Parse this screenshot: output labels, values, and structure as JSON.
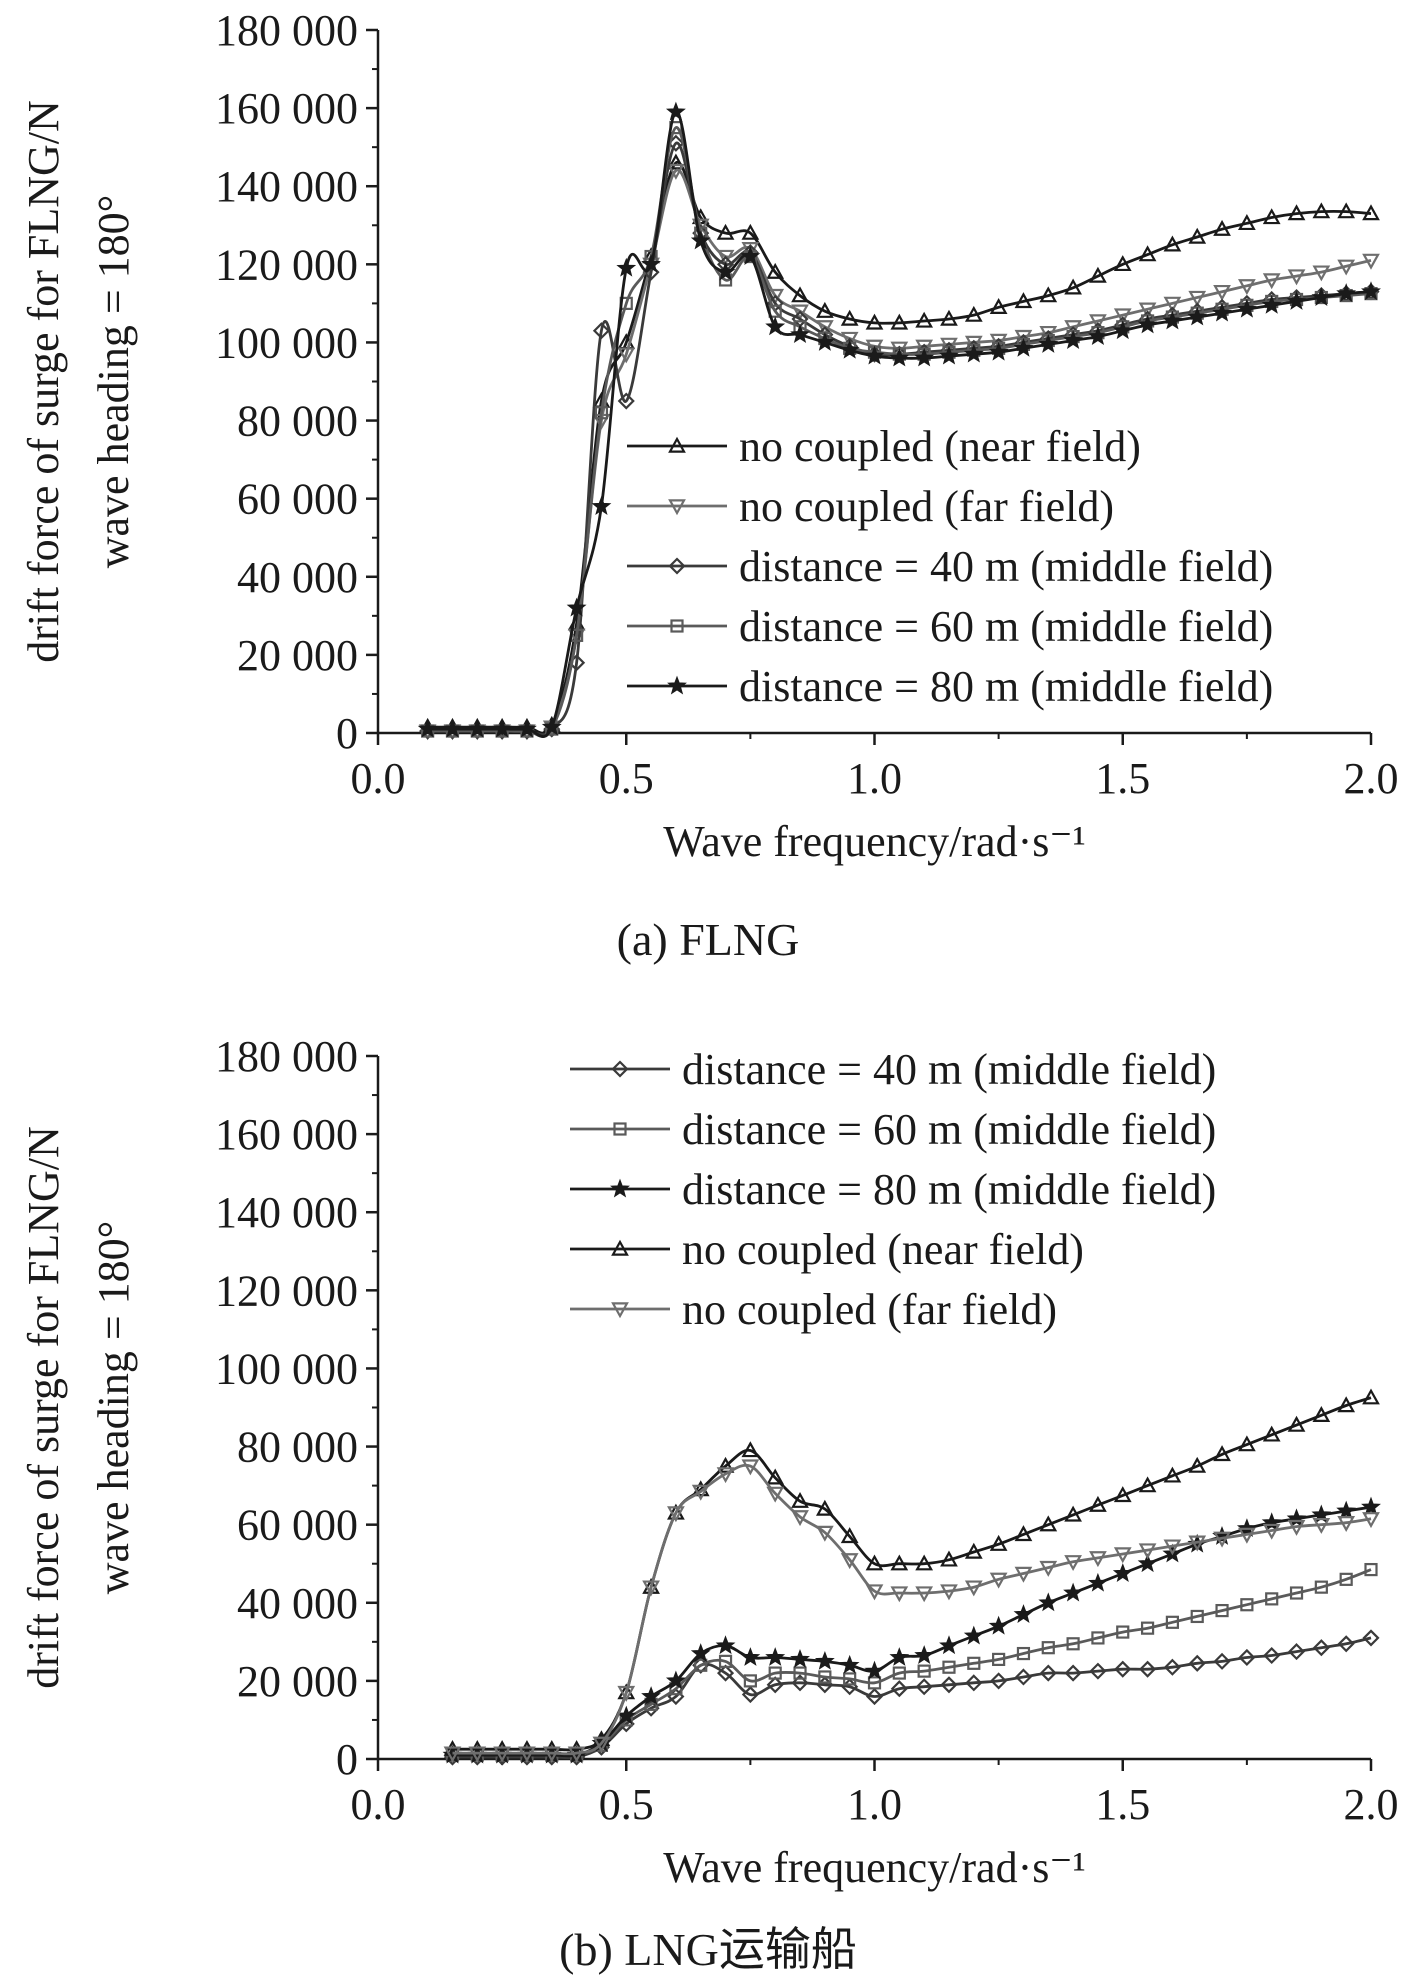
{
  "figure": {
    "captions": [
      "(a) FLNG",
      "(b) LNG运输船"
    ]
  },
  "chart_data": [
    {
      "type": "line",
      "title": "",
      "caption": "(a) FLNG",
      "xlabel": "Wave frequency/rad·s⁻¹",
      "ylabel": [
        "drift force of surge for FLNG/N",
        "wave heading = 180°"
      ],
      "xlim": [
        0,
        2.0
      ],
      "ylim": [
        0,
        180000
      ],
      "x_ticks": [
        0.0,
        0.5,
        1.0,
        1.5,
        2.0
      ],
      "x_tick_labels": [
        "0.0",
        "0.5",
        "1.0",
        "1.5",
        "2.0"
      ],
      "y_ticks": [
        0,
        20000,
        40000,
        60000,
        80000,
        100000,
        120000,
        140000,
        160000,
        180000
      ],
      "y_tick_labels": [
        "0",
        "20 000",
        "40 000",
        "60 000",
        "80 000",
        "100 000",
        "120 000",
        "140 000",
        "160 000",
        "180 000"
      ],
      "legend_position": "center-right",
      "grid": false,
      "series": [
        {
          "name": "no coupled (near field)",
          "marker": "triangle-up",
          "color": "#1a1a1a",
          "x": [
            0.1,
            0.15,
            0.2,
            0.25,
            0.3,
            0.35,
            0.4,
            0.45,
            0.5,
            0.55,
            0.6,
            0.65,
            0.7,
            0.75,
            0.8,
            0.85,
            0.9,
            0.95,
            1.0,
            1.05,
            1.1,
            1.15,
            1.2,
            1.25,
            1.3,
            1.35,
            1.4,
            1.45,
            1.5,
            1.55,
            1.6,
            1.65,
            1.7,
            1.75,
            1.8,
            1.85,
            1.9,
            1.95,
            2.0
          ],
          "values": [
            1500,
            1500,
            1500,
            1500,
            1500,
            2000,
            28000,
            85000,
            100000,
            122000,
            146000,
            132000,
            128000,
            128000,
            118000,
            112000,
            108000,
            106000,
            105000,
            105000,
            105500,
            106000,
            107000,
            109000,
            110500,
            112000,
            114000,
            117000,
            120000,
            122500,
            125000,
            127000,
            129000,
            130500,
            132000,
            133000,
            133500,
            133500,
            133000
          ]
        },
        {
          "name": "no coupled (far field)",
          "marker": "triangle-down",
          "color": "#6e6e6e",
          "x": [
            0.1,
            0.15,
            0.2,
            0.25,
            0.3,
            0.35,
            0.4,
            0.45,
            0.5,
            0.55,
            0.6,
            0.65,
            0.7,
            0.75,
            0.8,
            0.85,
            0.9,
            0.95,
            1.0,
            1.05,
            1.1,
            1.15,
            1.2,
            1.25,
            1.3,
            1.35,
            1.4,
            1.45,
            1.5,
            1.55,
            1.6,
            1.65,
            1.7,
            1.75,
            1.8,
            1.85,
            1.9,
            1.95,
            2.0
          ],
          "values": [
            500,
            500,
            500,
            500,
            500,
            1500,
            25000,
            80000,
            97000,
            120000,
            144000,
            130000,
            122000,
            124000,
            112000,
            108000,
            104000,
            101000,
            99000,
            98500,
            99000,
            99500,
            100000,
            100500,
            101500,
            102500,
            104000,
            105500,
            107000,
            108500,
            110000,
            111500,
            113000,
            114500,
            116000,
            117000,
            118000,
            119500,
            121000
          ]
        },
        {
          "name": "distance = 40 m (middle field)",
          "marker": "diamond",
          "color": "#3a3a3a",
          "x": [
            0.1,
            0.15,
            0.2,
            0.25,
            0.3,
            0.35,
            0.4,
            0.45,
            0.5,
            0.55,
            0.6,
            0.65,
            0.7,
            0.75,
            0.8,
            0.85,
            0.9,
            0.95,
            1.0,
            1.05,
            1.1,
            1.15,
            1.2,
            1.25,
            1.3,
            1.35,
            1.4,
            1.45,
            1.5,
            1.55,
            1.6,
            1.65,
            1.7,
            1.75,
            1.8,
            1.85,
            1.9,
            1.95,
            2.0
          ],
          "values": [
            500,
            500,
            500,
            500,
            500,
            1000,
            18000,
            103000,
            85000,
            118000,
            151000,
            128000,
            120000,
            123000,
            110000,
            106000,
            102000,
            99000,
            97000,
            97000,
            97500,
            98000,
            98500,
            99000,
            100000,
            101000,
            102000,
            103000,
            104500,
            106000,
            107000,
            108000,
            109000,
            110000,
            111000,
            111500,
            112000,
            112500,
            113000
          ]
        },
        {
          "name": "distance = 60 m (middle field)",
          "marker": "square",
          "color": "#5a5a5a",
          "x": [
            0.1,
            0.15,
            0.2,
            0.25,
            0.3,
            0.35,
            0.4,
            0.45,
            0.5,
            0.55,
            0.6,
            0.65,
            0.7,
            0.75,
            0.8,
            0.85,
            0.9,
            0.95,
            1.0,
            1.05,
            1.1,
            1.15,
            1.2,
            1.25,
            1.3,
            1.35,
            1.4,
            1.45,
            1.5,
            1.55,
            1.6,
            1.65,
            1.7,
            1.75,
            1.8,
            1.85,
            1.9,
            1.95,
            2.0
          ],
          "values": [
            500,
            500,
            500,
            500,
            500,
            1000,
            25000,
            82000,
            110000,
            122000,
            155000,
            128000,
            116000,
            122000,
            108000,
            104000,
            101000,
            98500,
            97500,
            97000,
            97000,
            97500,
            98000,
            98500,
            99500,
            100500,
            101500,
            102500,
            104000,
            105500,
            106500,
            107500,
            108500,
            109500,
            110500,
            111000,
            111500,
            112000,
            112500
          ]
        },
        {
          "name": "distance = 80 m (middle field)",
          "marker": "star",
          "color": "#1a1a1a",
          "x": [
            0.1,
            0.15,
            0.2,
            0.25,
            0.3,
            0.35,
            0.4,
            0.45,
            0.5,
            0.55,
            0.6,
            0.65,
            0.7,
            0.75,
            0.8,
            0.85,
            0.9,
            0.95,
            1.0,
            1.05,
            1.1,
            1.15,
            1.2,
            1.25,
            1.3,
            1.35,
            1.4,
            1.45,
            1.5,
            1.55,
            1.6,
            1.65,
            1.7,
            1.75,
            1.8,
            1.85,
            1.9,
            1.95,
            2.0
          ],
          "values": [
            1000,
            1000,
            1000,
            1000,
            1000,
            1500,
            32000,
            58000,
            119000,
            120000,
            159000,
            126000,
            118000,
            122000,
            104000,
            102000,
            100000,
            98000,
            96500,
            96000,
            96000,
            96500,
            97000,
            97500,
            98500,
            99500,
            100500,
            101500,
            103000,
            104500,
            105500,
            106500,
            107500,
            108500,
            109500,
            110500,
            111500,
            112500,
            113000
          ]
        }
      ]
    },
    {
      "type": "line",
      "title": "",
      "caption": "(b) LNG运输船",
      "xlabel": "Wave frequency/rad·s⁻¹",
      "ylabel": [
        "drift force of surge for FLNG/N",
        "wave heading = 180°"
      ],
      "xlim": [
        0,
        2.0
      ],
      "ylim": [
        0,
        180000
      ],
      "x_ticks": [
        0.0,
        0.5,
        1.0,
        1.5,
        2.0
      ],
      "x_tick_labels": [
        "0.0",
        "0.5",
        "1.0",
        "1.5",
        "2.0"
      ],
      "y_ticks": [
        0,
        20000,
        40000,
        60000,
        80000,
        100000,
        120000,
        140000,
        160000,
        180000
      ],
      "y_tick_labels": [
        "0",
        "20 000",
        "40 000",
        "60 000",
        "80 000",
        "100 000",
        "120 000",
        "140 000",
        "160 000",
        "180 000"
      ],
      "legend_position": "top-right",
      "grid": false,
      "series": [
        {
          "name": "distance = 40 m (middle field)",
          "marker": "diamond",
          "color": "#3a3a3a",
          "x": [
            0.15,
            0.2,
            0.25,
            0.3,
            0.35,
            0.4,
            0.45,
            0.5,
            0.55,
            0.6,
            0.65,
            0.7,
            0.75,
            0.8,
            0.85,
            0.9,
            0.95,
            1.0,
            1.05,
            1.1,
            1.15,
            1.2,
            1.25,
            1.3,
            1.35,
            1.4,
            1.45,
            1.5,
            1.55,
            1.6,
            1.65,
            1.7,
            1.75,
            1.8,
            1.85,
            1.9,
            1.95,
            2.0
          ],
          "values": [
            500,
            500,
            500,
            500,
            500,
            500,
            3000,
            9000,
            13000,
            16000,
            24000,
            22000,
            16500,
            19000,
            19500,
            19000,
            18500,
            16000,
            18000,
            18500,
            19000,
            19500,
            20000,
            21000,
            22000,
            22000,
            22500,
            23000,
            23000,
            23500,
            24500,
            25000,
            26000,
            26500,
            27500,
            28500,
            29500,
            31000
          ]
        },
        {
          "name": "distance = 60 m (middle field)",
          "marker": "square",
          "color": "#5a5a5a",
          "x": [
            0.15,
            0.2,
            0.25,
            0.3,
            0.35,
            0.4,
            0.45,
            0.5,
            0.55,
            0.6,
            0.65,
            0.7,
            0.75,
            0.8,
            0.85,
            0.9,
            0.95,
            1.0,
            1.05,
            1.1,
            1.15,
            1.2,
            1.25,
            1.3,
            1.35,
            1.4,
            1.45,
            1.5,
            1.55,
            1.6,
            1.65,
            1.7,
            1.75,
            1.8,
            1.85,
            1.9,
            1.95,
            2.0
          ],
          "values": [
            1000,
            1000,
            1000,
            1000,
            1000,
            1000,
            3500,
            10000,
            14000,
            18000,
            24000,
            25000,
            20000,
            22000,
            22000,
            21000,
            20500,
            19500,
            22000,
            22500,
            23500,
            24500,
            25500,
            27000,
            28500,
            29500,
            31000,
            32500,
            33500,
            35000,
            36500,
            38000,
            39500,
            41000,
            42500,
            44000,
            46000,
            48500
          ]
        },
        {
          "name": "distance = 80 m (middle field)",
          "marker": "star",
          "color": "#1a1a1a",
          "x": [
            0.15,
            0.2,
            0.25,
            0.3,
            0.35,
            0.4,
            0.45,
            0.5,
            0.55,
            0.6,
            0.65,
            0.7,
            0.75,
            0.8,
            0.85,
            0.9,
            0.95,
            1.0,
            1.05,
            1.1,
            1.15,
            1.2,
            1.25,
            1.3,
            1.35,
            1.4,
            1.45,
            1.5,
            1.55,
            1.6,
            1.65,
            1.7,
            1.75,
            1.8,
            1.85,
            1.9,
            1.95,
            2.0
          ],
          "values": [
            1000,
            1000,
            1000,
            1000,
            1000,
            1000,
            4000,
            11000,
            16000,
            20000,
            27000,
            29000,
            26000,
            26000,
            25500,
            25000,
            24000,
            22500,
            26000,
            26500,
            29000,
            31500,
            34000,
            37000,
            40000,
            42500,
            45000,
            47500,
            50000,
            52500,
            55000,
            57000,
            59000,
            60500,
            61500,
            62500,
            63500,
            64500
          ]
        },
        {
          "name": "no coupled (near field)",
          "marker": "triangle-up",
          "color": "#1a1a1a",
          "x": [
            0.15,
            0.2,
            0.25,
            0.3,
            0.35,
            0.4,
            0.45,
            0.5,
            0.55,
            0.6,
            0.65,
            0.7,
            0.75,
            0.8,
            0.85,
            0.9,
            0.95,
            1.0,
            1.05,
            1.1,
            1.15,
            1.2,
            1.25,
            1.3,
            1.35,
            1.4,
            1.45,
            1.5,
            1.55,
            1.6,
            1.65,
            1.7,
            1.75,
            1.8,
            1.85,
            1.9,
            1.95,
            2.0
          ],
          "values": [
            2500,
            2500,
            2500,
            2500,
            2500,
            2500,
            5000,
            17000,
            44000,
            63000,
            69000,
            75000,
            79000,
            72000,
            66000,
            64000,
            57000,
            50000,
            50000,
            50000,
            51000,
            53000,
            55000,
            57500,
            60000,
            62500,
            65000,
            67500,
            70000,
            72500,
            75000,
            78000,
            80500,
            83000,
            85500,
            88000,
            90500,
            92500
          ]
        },
        {
          "name": "no coupled (far field)",
          "marker": "triangle-down",
          "color": "#6e6e6e",
          "x": [
            0.15,
            0.2,
            0.25,
            0.3,
            0.35,
            0.4,
            0.45,
            0.5,
            0.55,
            0.6,
            0.65,
            0.7,
            0.75,
            0.8,
            0.85,
            0.9,
            0.95,
            1.0,
            1.05,
            1.1,
            1.15,
            1.2,
            1.25,
            1.3,
            1.35,
            1.4,
            1.45,
            1.5,
            1.55,
            1.6,
            1.65,
            1.7,
            1.75,
            1.8,
            1.85,
            1.9,
            1.95,
            2.0
          ],
          "values": [
            1500,
            1500,
            1500,
            1500,
            1500,
            1500,
            4000,
            17000,
            44000,
            63000,
            68500,
            73000,
            75000,
            68000,
            62000,
            58000,
            51000,
            43000,
            42500,
            42500,
            43000,
            44000,
            46000,
            47500,
            49000,
            50500,
            51500,
            52500,
            53500,
            54500,
            55500,
            56500,
            57500,
            58500,
            59500,
            60000,
            60500,
            61500
          ]
        }
      ]
    }
  ]
}
